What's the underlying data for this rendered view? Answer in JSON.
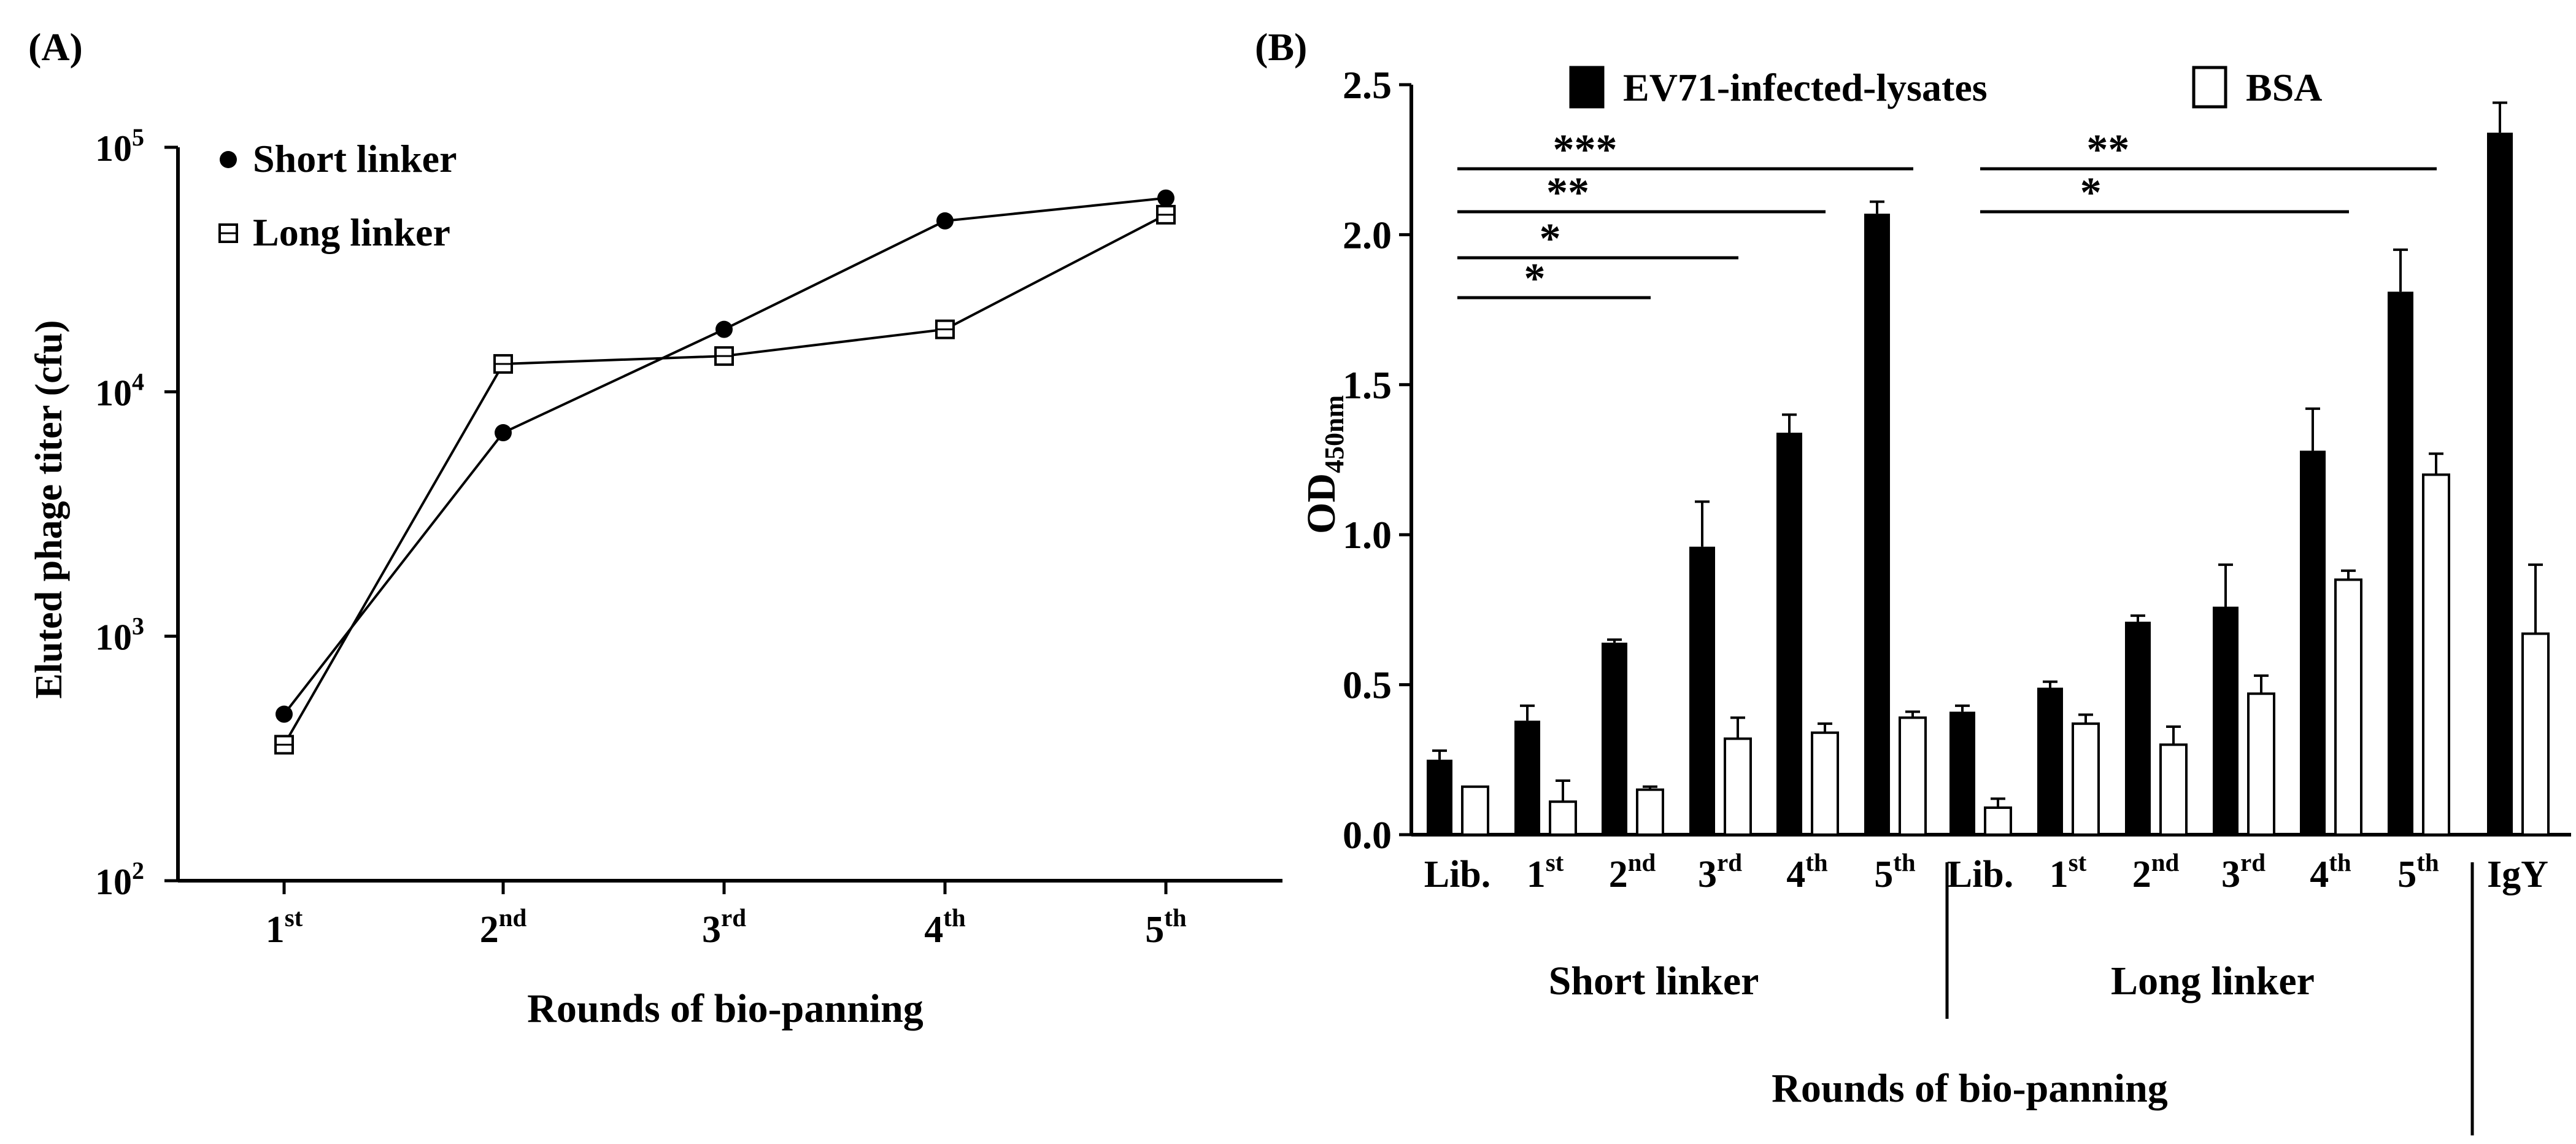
{
  "chart_data": [
    {
      "panel_label": "(A)",
      "type": "line",
      "yscale": "log",
      "ylim": [
        100,
        100000
      ],
      "y_tick_labels": [
        {
          "value": 100,
          "base": "10",
          "exp": "2"
        },
        {
          "value": 1000,
          "base": "10",
          "exp": "3"
        },
        {
          "value": 10000,
          "base": "10",
          "exp": "4"
        },
        {
          "value": 100000,
          "base": "10",
          "exp": "5"
        }
      ],
      "categories": [
        {
          "base": "1",
          "sup": "st"
        },
        {
          "base": "2",
          "sup": "nd"
        },
        {
          "base": "3",
          "sup": "rd"
        },
        {
          "base": "4",
          "sup": "th"
        },
        {
          "base": "5",
          "sup": "th"
        }
      ],
      "ylabel": "Eluted phage titer (cfu)",
      "xlabel": "Rounds of bio-panning",
      "legend_position": "top-left",
      "series": [
        {
          "name": "Short linker",
          "marker": "filled-circle",
          "values": [
            480,
            6800,
            18000,
            50000,
            62000
          ]
        },
        {
          "name": "Long linker",
          "marker": "open-square",
          "values": [
            360,
            13000,
            14000,
            18000,
            53000
          ]
        }
      ]
    },
    {
      "panel_label": "(B)",
      "type": "bar",
      "ylim": [
        0,
        2.5
      ],
      "y_ticks": [
        "0.0",
        "0.5",
        "1.0",
        "1.5",
        "2.0",
        "2.5"
      ],
      "ylabel_main": "OD",
      "ylabel_sub": "450nm",
      "xlabel": "Rounds of bio-panning",
      "legend_position": "top",
      "series": [
        {
          "name": "EV71-infected-lysates",
          "fill": "#000000"
        },
        {
          "name": "BSA",
          "fill": "#ffffff"
        }
      ],
      "groups": [
        {
          "name": "Short linker",
          "categories": [
            {
              "base": "Lib.",
              "sup": ""
            },
            {
              "base": "1",
              "sup": "st"
            },
            {
              "base": "2",
              "sup": "nd"
            },
            {
              "base": "3",
              "sup": "rd"
            },
            {
              "base": "4",
              "sup": "th"
            },
            {
              "base": "5",
              "sup": "th"
            }
          ],
          "ev71": [
            0.25,
            0.38,
            0.64,
            0.96,
            1.34,
            2.07
          ],
          "ev71_err": [
            0.03,
            0.05,
            0.01,
            0.15,
            0.06,
            0.04
          ],
          "bsa": [
            0.16,
            0.11,
            0.15,
            0.32,
            0.34,
            0.39
          ],
          "bsa_err": [
            0.0,
            0.07,
            0.01,
            0.07,
            0.03,
            0.02
          ]
        },
        {
          "name": "Long linker",
          "categories": [
            {
              "base": "Lib.",
              "sup": ""
            },
            {
              "base": "1",
              "sup": "st"
            },
            {
              "base": "2",
              "sup": "nd"
            },
            {
              "base": "3",
              "sup": "rd"
            },
            {
              "base": "4",
              "sup": "th"
            },
            {
              "base": "5",
              "sup": "th"
            }
          ],
          "ev71": [
            0.41,
            0.49,
            0.71,
            0.76,
            1.28,
            1.81
          ],
          "ev71_err": [
            0.02,
            0.02,
            0.02,
            0.14,
            0.14,
            0.14
          ],
          "bsa": [
            0.09,
            0.37,
            0.3,
            0.47,
            0.85,
            1.2
          ],
          "bsa_err": [
            0.03,
            0.03,
            0.06,
            0.06,
            0.03,
            0.07
          ]
        },
        {
          "name": "",
          "categories": [
            {
              "base": "IgY",
              "sup": ""
            }
          ],
          "ev71": [
            2.34
          ],
          "ev71_err": [
            0.1
          ],
          "bsa": [
            0.67
          ],
          "bsa_err": [
            0.23
          ]
        }
      ],
      "significance": [
        {
          "label": "***",
          "group": 0,
          "from": 0,
          "to": 5
        },
        {
          "label": "**",
          "group": 0,
          "from": 0,
          "to": 4
        },
        {
          "label": "*",
          "group": 0,
          "from": 0,
          "to": 3
        },
        {
          "label": "*",
          "group": 0,
          "from": 0,
          "to": 2
        },
        {
          "label": "**",
          "group": 1,
          "from": 0,
          "to": 5
        },
        {
          "label": "*",
          "group": 1,
          "from": 0,
          "to": 4
        }
      ]
    }
  ]
}
